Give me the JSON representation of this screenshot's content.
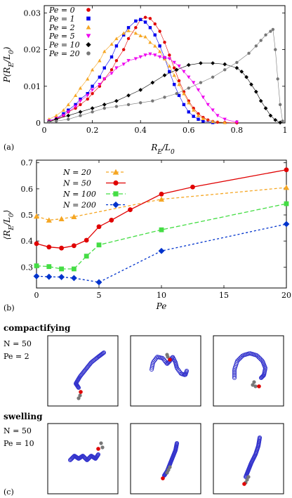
{
  "chart_data": [
    {
      "type": "line",
      "panel_label": "(a)",
      "xlabel": "R_E/L_0",
      "ylabel": "P(R_E/L_0)",
      "xlim": [
        0,
        1
      ],
      "ylim": [
        0,
        0.032
      ],
      "xticks": [
        "0",
        "0.2",
        "0.4",
        "0.6",
        "0.8",
        "1"
      ],
      "yticks": [
        "0",
        "0.01",
        "0.02",
        "0.03"
      ],
      "legend_position": "top-left",
      "series": [
        {
          "name": "Pe = 0",
          "color": "#e00000",
          "marker": "circle",
          "x": [
            0.02,
            0.05,
            0.08,
            0.1,
            0.13,
            0.15,
            0.18,
            0.2,
            0.23,
            0.25,
            0.28,
            0.3,
            0.33,
            0.35,
            0.38,
            0.4,
            0.42,
            0.44,
            0.46,
            0.48,
            0.5,
            0.52,
            0.54,
            0.56,
            0.58,
            0.6,
            0.62,
            0.64,
            0.66,
            0.68,
            0.7,
            0.72,
            0.75,
            0.8
          ],
          "y": [
            0.0005,
            0.001,
            0.002,
            0.003,
            0.004,
            0.005,
            0.0065,
            0.008,
            0.01,
            0.012,
            0.0145,
            0.017,
            0.02,
            0.023,
            0.026,
            0.0282,
            0.0288,
            0.0285,
            0.027,
            0.025,
            0.022,
            0.0185,
            0.015,
            0.0115,
            0.0085,
            0.006,
            0.004,
            0.0025,
            0.0015,
            0.0008,
            0.0004,
            0.0002,
            0.0001,
            0
          ]
        },
        {
          "name": "Pe = 1",
          "color": "#0000ee",
          "marker": "square",
          "x": [
            0.02,
            0.05,
            0.08,
            0.1,
            0.13,
            0.15,
            0.18,
            0.2,
            0.23,
            0.25,
            0.28,
            0.3,
            0.33,
            0.35,
            0.38,
            0.4,
            0.42,
            0.44,
            0.46,
            0.48,
            0.5,
            0.52,
            0.54,
            0.56,
            0.58,
            0.6,
            0.62,
            0.64,
            0.66,
            0.7
          ],
          "y": [
            0.0006,
            0.0012,
            0.0025,
            0.0035,
            0.005,
            0.0065,
            0.008,
            0.01,
            0.0125,
            0.015,
            0.018,
            0.021,
            0.024,
            0.026,
            0.0278,
            0.0282,
            0.0275,
            0.026,
            0.024,
            0.021,
            0.0178,
            0.014,
            0.0105,
            0.0075,
            0.005,
            0.003,
            0.0018,
            0.001,
            0.0005,
            0.0001
          ]
        },
        {
          "name": "Pe = 2",
          "color": "#f5a623",
          "marker": "triangle-up",
          "x": [
            0.02,
            0.05,
            0.08,
            0.1,
            0.13,
            0.15,
            0.18,
            0.2,
            0.23,
            0.25,
            0.28,
            0.3,
            0.33,
            0.35,
            0.38,
            0.4,
            0.42,
            0.44,
            0.46,
            0.48,
            0.5,
            0.52,
            0.54,
            0.56,
            0.58,
            0.6,
            0.62,
            0.64,
            0.66,
            0.7,
            0.75
          ],
          "y": [
            0.001,
            0.002,
            0.0035,
            0.005,
            0.0075,
            0.0095,
            0.012,
            0.0145,
            0.017,
            0.0195,
            0.0215,
            0.023,
            0.0245,
            0.0252,
            0.0245,
            0.0238,
            0.0235,
            0.022,
            0.021,
            0.0195,
            0.0175,
            0.0155,
            0.013,
            0.0105,
            0.008,
            0.0055,
            0.0035,
            0.002,
            0.0012,
            0.0004,
            0.0001
          ]
        },
        {
          "name": "Pe = 5",
          "color": "#ee00ee",
          "marker": "triangle-down",
          "x": [
            0.02,
            0.05,
            0.08,
            0.1,
            0.13,
            0.15,
            0.18,
            0.2,
            0.23,
            0.25,
            0.28,
            0.3,
            0.33,
            0.35,
            0.38,
            0.4,
            0.42,
            0.44,
            0.46,
            0.48,
            0.5,
            0.52,
            0.54,
            0.56,
            0.58,
            0.6,
            0.62,
            0.64,
            0.66,
            0.68,
            0.7,
            0.72,
            0.75,
            0.8
          ],
          "y": [
            0.0005,
            0.0012,
            0.002,
            0.003,
            0.0045,
            0.006,
            0.0075,
            0.009,
            0.0105,
            0.012,
            0.0135,
            0.015,
            0.016,
            0.017,
            0.0175,
            0.018,
            0.0185,
            0.0188,
            0.0185,
            0.018,
            0.0178,
            0.0175,
            0.0165,
            0.0155,
            0.014,
            0.0125,
            0.011,
            0.009,
            0.007,
            0.005,
            0.0035,
            0.002,
            0.001,
            0.0002
          ]
        },
        {
          "name": "Pe = 10",
          "color": "#000000",
          "marker": "diamond",
          "x": [
            0.02,
            0.05,
            0.1,
            0.15,
            0.2,
            0.25,
            0.3,
            0.35,
            0.4,
            0.45,
            0.5,
            0.55,
            0.6,
            0.65,
            0.7,
            0.75,
            0.8,
            0.82,
            0.84,
            0.86,
            0.88,
            0.9,
            0.92,
            0.94,
            0.96,
            0.98
          ],
          "y": [
            0.0003,
            0.001,
            0.002,
            0.003,
            0.004,
            0.005,
            0.006,
            0.0075,
            0.009,
            0.011,
            0.013,
            0.0145,
            0.0158,
            0.0163,
            0.0163,
            0.016,
            0.015,
            0.014,
            0.0125,
            0.0105,
            0.0085,
            0.006,
            0.004,
            0.002,
            0.0008,
            0.0001
          ]
        },
        {
          "name": "Pe = 20",
          "color": "#777777",
          "marker": "circle",
          "x": [
            0.02,
            0.05,
            0.1,
            0.15,
            0.2,
            0.25,
            0.3,
            0.35,
            0.4,
            0.45,
            0.5,
            0.55,
            0.6,
            0.65,
            0.7,
            0.75,
            0.8,
            0.85,
            0.88,
            0.9,
            0.92,
            0.94,
            0.95,
            0.96,
            0.97,
            0.98,
            0.99
          ],
          "y": [
            0.0002,
            0.0005,
            0.001,
            0.002,
            0.003,
            0.004,
            0.0045,
            0.005,
            0.0055,
            0.006,
            0.007,
            0.008,
            0.0095,
            0.011,
            0.0125,
            0.0145,
            0.0165,
            0.019,
            0.021,
            0.0225,
            0.024,
            0.025,
            0.0255,
            0.02,
            0.012,
            0.005,
            0.0005
          ]
        }
      ]
    },
    {
      "type": "line",
      "panel_label": "(b)",
      "xlabel": "Pe",
      "ylabel": "⟨R_E/L_0⟩",
      "xlim": [
        0,
        20
      ],
      "ylim": [
        0.22,
        0.71
      ],
      "xticks": [
        "0",
        "5",
        "10",
        "15",
        "20"
      ],
      "yticks": [
        "0.3",
        "0.4",
        "0.5",
        "0.6",
        "0.7"
      ],
      "legend_position": "top-left",
      "series": [
        {
          "name": "N = 20",
          "color": "#f5a623",
          "marker": "triangle-up",
          "dash": "4,3",
          "x": [
            0,
            1,
            2,
            3,
            10,
            20
          ],
          "y": [
            0.495,
            0.48,
            0.485,
            0.493,
            0.56,
            0.605
          ]
        },
        {
          "name": "N = 50",
          "color": "#e00000",
          "marker": "circle",
          "dash": "",
          "x": [
            0,
            1,
            2,
            3,
            4,
            5,
            6,
            7.5,
            10,
            12.5,
            20
          ],
          "y": [
            0.39,
            0.377,
            0.373,
            0.382,
            0.403,
            0.455,
            0.48,
            0.52,
            0.58,
            0.607,
            0.673
          ]
        },
        {
          "name": "N = 100",
          "color": "#44dd44",
          "marker": "square",
          "dash": "6,3",
          "x": [
            0,
            1,
            2,
            3,
            4,
            5,
            10,
            20
          ],
          "y": [
            0.305,
            0.302,
            0.293,
            0.293,
            0.342,
            0.385,
            0.443,
            0.543
          ]
        },
        {
          "name": "N = 200",
          "color": "#0033cc",
          "marker": "diamond",
          "dash": "3,3",
          "x": [
            0,
            1,
            2,
            3,
            5,
            10,
            20
          ],
          "y": [
            0.265,
            0.263,
            0.262,
            0.258,
            0.242,
            0.362,
            0.465
          ]
        }
      ]
    }
  ],
  "panel_c": {
    "label": "(c)",
    "rows": [
      {
        "title": "compactifying",
        "n_label": "N = 50",
        "pe_label": "Pe = 2"
      },
      {
        "title": "swelling",
        "n_label": "N = 50",
        "pe_label": "Pe = 10"
      }
    ],
    "colors": {
      "chain": "#3333cc",
      "head": "#e00000",
      "tail": "#777777"
    }
  }
}
